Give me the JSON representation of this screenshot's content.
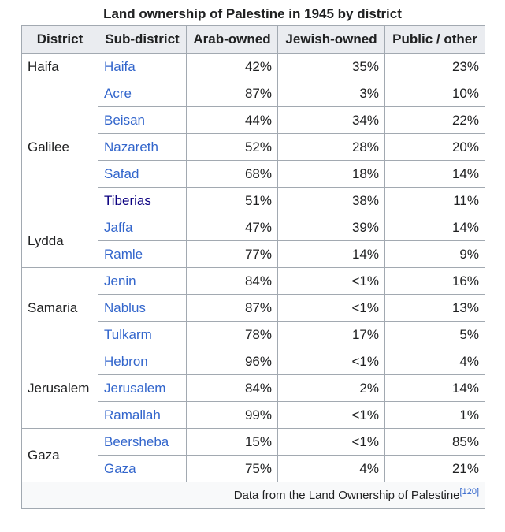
{
  "caption": "Land ownership of Palestine in 1945 by district",
  "headers": {
    "district": "District",
    "subdistrict": "Sub-district",
    "arab": "Arab-owned",
    "jewish": "Jewish-owned",
    "public": "Public / other"
  },
  "districts": [
    {
      "name": "Haifa",
      "rows": [
        {
          "sub": "Haifa",
          "arab": "42%",
          "jewish": "35%",
          "public": "23%"
        }
      ]
    },
    {
      "name": "Galilee",
      "rows": [
        {
          "sub": "Acre",
          "arab": "87%",
          "jewish": "3%",
          "public": "10%"
        },
        {
          "sub": "Beisan",
          "arab": "44%",
          "jewish": "34%",
          "public": "22%"
        },
        {
          "sub": "Nazareth",
          "arab": "52%",
          "jewish": "28%",
          "public": "20%"
        },
        {
          "sub": "Safad",
          "arab": "68%",
          "jewish": "18%",
          "public": "14%"
        },
        {
          "sub": "Tiberias",
          "arab": "51%",
          "jewish": "38%",
          "public": "11%"
        }
      ]
    },
    {
      "name": "Lydda",
      "rows": [
        {
          "sub": "Jaffa",
          "arab": "47%",
          "jewish": "39%",
          "public": "14%"
        },
        {
          "sub": "Ramle",
          "arab": "77%",
          "jewish": "14%",
          "public": "9%"
        }
      ]
    },
    {
      "name": "Samaria",
      "rows": [
        {
          "sub": "Jenin",
          "arab": "84%",
          "jewish": "<1%",
          "public": "16%"
        },
        {
          "sub": "Nablus",
          "arab": "87%",
          "jewish": "<1%",
          "public": "13%"
        },
        {
          "sub": "Tulkarm",
          "arab": "78%",
          "jewish": "17%",
          "public": "5%"
        }
      ]
    },
    {
      "name": "Jerusalem",
      "rows": [
        {
          "sub": "Hebron",
          "arab": "96%",
          "jewish": "<1%",
          "public": "4%"
        },
        {
          "sub": "Jerusalem",
          "arab": "84%",
          "jewish": "2%",
          "public": "14%"
        },
        {
          "sub": "Ramallah",
          "arab": "99%",
          "jewish": "<1%",
          "public": "1%"
        }
      ]
    },
    {
      "name": "Gaza",
      "rows": [
        {
          "sub": "Beersheba",
          "arab": "15%",
          "jewish": "<1%",
          "public": "85%"
        },
        {
          "sub": "Gaza",
          "arab": "75%",
          "jewish": "4%",
          "public": "21%"
        }
      ]
    }
  ],
  "footer": {
    "text": "Data from the Land Ownership of Palestine",
    "ref": "[120]"
  },
  "colors": {
    "link": "#3366cc",
    "visited_link": "#0b0080",
    "header_bg": "#eaecf0",
    "border": "#a2a9b1"
  }
}
